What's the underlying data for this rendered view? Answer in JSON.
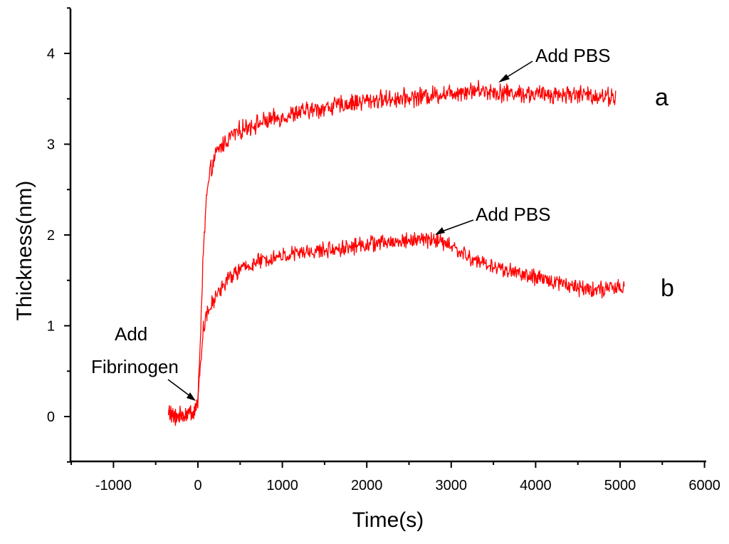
{
  "chart_data": {
    "type": "line",
    "title": "",
    "xlabel": "Time(s)",
    "ylabel": "Thickness(nm)",
    "xlim": [
      -1500,
      6000
    ],
    "ylim": [
      -0.5,
      4.5
    ],
    "xticks": [
      -1000,
      0,
      1000,
      2000,
      3000,
      4000,
      5000,
      6000
    ],
    "xtick_labels": [
      "-1000",
      "0",
      "1000",
      "2000",
      "3000",
      "4000",
      "5000",
      "6000"
    ],
    "yticks": [
      0,
      1,
      2,
      3,
      4
    ],
    "ytick_labels": [
      "0",
      "1",
      "2",
      "3",
      "4"
    ],
    "line_color": "#ff0000",
    "series": [
      {
        "name": "a",
        "label": "a",
        "x": [
          -350,
          -300,
          -200,
          -100,
          -50,
          0,
          30,
          60,
          100,
          150,
          200,
          250,
          300,
          400,
          500,
          600,
          800,
          1000,
          1200,
          1500,
          1800,
          2000,
          2300,
          2600,
          3000,
          3300,
          3600,
          4000,
          4500,
          4950
        ],
        "y": [
          0.05,
          0.0,
          0.0,
          0.05,
          0.05,
          0.15,
          0.9,
          1.7,
          2.4,
          2.7,
          2.85,
          2.95,
          3.0,
          3.1,
          3.15,
          3.2,
          3.25,
          3.3,
          3.35,
          3.4,
          3.45,
          3.48,
          3.5,
          3.52,
          3.57,
          3.6,
          3.57,
          3.55,
          3.55,
          3.52
        ],
        "noise": 0.08
      },
      {
        "name": "b",
        "label": "b",
        "x": [
          -350,
          -300,
          -200,
          -100,
          -50,
          0,
          30,
          60,
          100,
          150,
          200,
          250,
          300,
          400,
          500,
          700,
          900,
          1200,
          1500,
          1800,
          2000,
          2300,
          2600,
          2800,
          3000,
          3200,
          3500,
          3800,
          4000,
          4300,
          4500,
          4800,
          5050
        ],
        "y": [
          0.05,
          0.0,
          0.0,
          0.05,
          0.05,
          0.15,
          0.6,
          0.95,
          1.1,
          1.2,
          1.3,
          1.38,
          1.45,
          1.55,
          1.62,
          1.7,
          1.75,
          1.8,
          1.83,
          1.87,
          1.9,
          1.92,
          1.95,
          1.95,
          1.88,
          1.75,
          1.65,
          1.58,
          1.52,
          1.48,
          1.42,
          1.4,
          1.42
        ],
        "noise": 0.07
      }
    ],
    "annotations": [
      {
        "text": "Add PBS",
        "target_series": "a",
        "target_x": 3550,
        "target_y": 3.62
      },
      {
        "text": "Add PBS",
        "target_series": "b",
        "target_x": 2800,
        "target_y": 1.95
      },
      {
        "text_lines": [
          "Add",
          "Fibrinogen"
        ],
        "target_series": "a",
        "target_x": 0,
        "target_y": 0.15
      }
    ]
  }
}
